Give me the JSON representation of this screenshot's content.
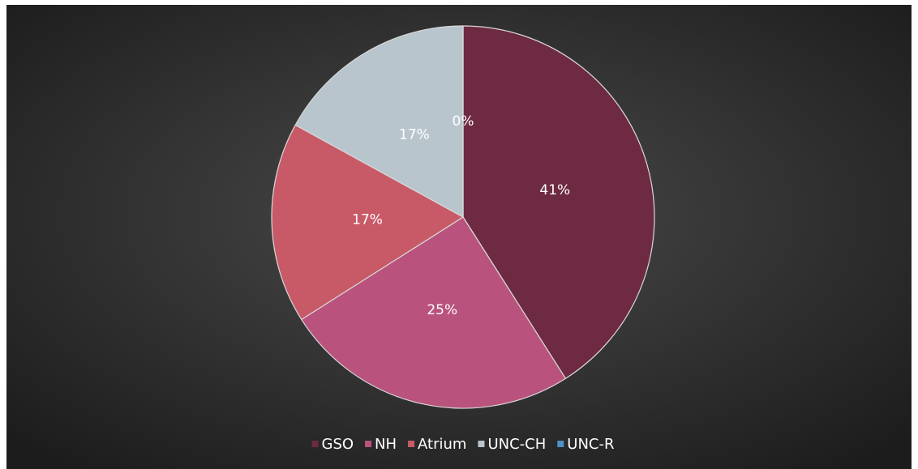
{
  "chart_data": {
    "type": "pie",
    "categories": [
      "GSO",
      "NH",
      "Atrium",
      "UNC-CH",
      "UNC-R"
    ],
    "values": [
      41,
      25,
      17,
      17,
      0
    ],
    "value_labels": [
      "41%",
      "25%",
      "17%",
      "17%",
      "0%"
    ],
    "colors": [
      "#6e2a42",
      "#b9527c",
      "#c85a68",
      "#b9c5cd",
      "#4b93c4"
    ],
    "legend": "bottom"
  }
}
